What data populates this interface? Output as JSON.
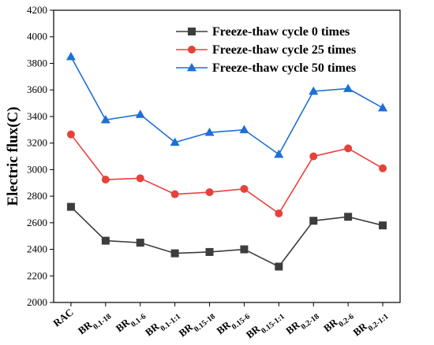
{
  "chart_data": {
    "type": "line",
    "title": "",
    "xlabel": "",
    "ylabel": "Electric flux(C)",
    "ylim": [
      2000,
      4200
    ],
    "yticks": [
      2000,
      2200,
      2400,
      2600,
      2800,
      3000,
      3200,
      3400,
      3600,
      3800,
      4000,
      4200
    ],
    "grid": false,
    "legend_position": "top-right",
    "categories": [
      {
        "main": "RAC",
        "sub": ""
      },
      {
        "main": "BR",
        "sub": "0.1-18"
      },
      {
        "main": "BR",
        "sub": "0.1-6"
      },
      {
        "main": "BR",
        "sub": "0.1-1:1"
      },
      {
        "main": "BR",
        "sub": "0.15-18"
      },
      {
        "main": "BR",
        "sub": "0.15-6"
      },
      {
        "main": "BR",
        "sub": "0.15-1:1"
      },
      {
        "main": "BR",
        "sub": "0.2-18"
      },
      {
        "main": "BR",
        "sub": "0.2-6"
      },
      {
        "main": "BR",
        "sub": "0.2-1:1"
      }
    ],
    "series": [
      {
        "name": "Freeze-thaw cycle 0 times",
        "color": "#3d3d3d",
        "marker": "square",
        "values": [
          2720,
          2465,
          2450,
          2370,
          2380,
          2400,
          2270,
          2615,
          2645,
          2580
        ]
      },
      {
        "name": "Freeze-thaw cycle 25 times",
        "color": "#e8413d",
        "marker": "circle",
        "values": [
          3265,
          2925,
          2935,
          2815,
          2830,
          2855,
          2670,
          3100,
          3160,
          3010
        ]
      },
      {
        "name": "Freeze-thaw cycle 50 times",
        "color": "#1f6fd6",
        "marker": "triangle",
        "values": [
          3850,
          3375,
          3415,
          3205,
          3280,
          3300,
          3115,
          3590,
          3610,
          3465
        ]
      }
    ]
  }
}
